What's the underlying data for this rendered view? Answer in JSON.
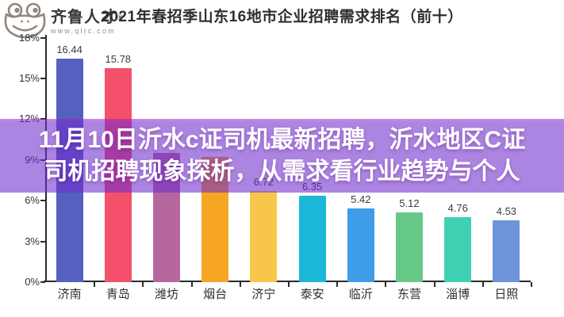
{
  "header": {
    "logo": {
      "icon": "frog-logo-icon",
      "brand": "齐鲁人才",
      "registered_mark": "®",
      "website": "www.qlrc.com"
    },
    "title": "2021年春招季山东16地市企业招聘需求排名（前十）"
  },
  "overlay_banner": {
    "line1": "11月10日沂水c证司机最新招聘，沂水地区C证",
    "line2": "司机招聘现象探析，从需求看行业趋势与个人",
    "background_rgba": "rgba(112,44,204,0.58)",
    "top_edge_rgba": "rgba(170,30,190,0.55)",
    "text_color": "#ffffff"
  },
  "chart_data": {
    "type": "bar",
    "title": "2021年春招季山东16地市企业招聘需求排名（前十）",
    "categories": [
      "济南",
      "青岛",
      "潍坊",
      "烟台",
      "济宁",
      "泰安",
      "临沂",
      "东营",
      "淄博",
      "日照"
    ],
    "values": [
      16.44,
      15.78,
      9.5,
      9.2,
      6.72,
      6.35,
      5.42,
      5.12,
      4.76,
      4.53
    ],
    "value_labels": [
      "16.44",
      "15.78",
      "",
      "",
      "6.72",
      "6.35",
      "5.42",
      "5.12",
      "4.76",
      "4.53"
    ],
    "bar_colors": [
      "#5560c0",
      "#f4506c",
      "#b5679e",
      "#f7a623",
      "#f8c64a",
      "#1ab7d9",
      "#3f9ce9",
      "#66c988",
      "#3fd0b2",
      "#6d94d9"
    ],
    "ylabel_ticks": [
      "0%",
      "3%",
      "6%",
      "9%",
      "12%",
      "15%",
      "18%"
    ],
    "ylim": [
      0,
      18
    ],
    "xlabel": "",
    "ylabel": "",
    "grid": false,
    "legend": false,
    "axis_color": "#2a2a2a",
    "label_color": "#333333"
  }
}
